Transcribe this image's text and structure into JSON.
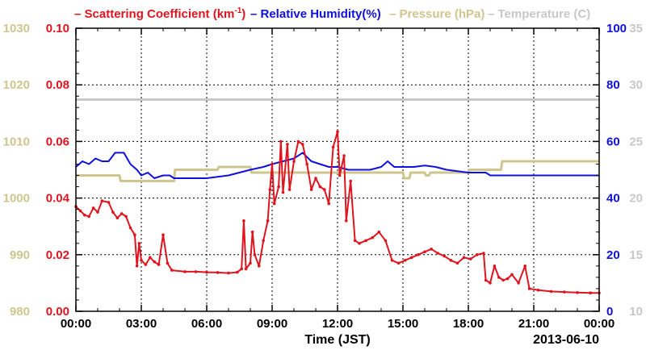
{
  "colors": {
    "scattering": "#e0141e",
    "humidity": "#1010dd",
    "pressure": "#cfc58e",
    "temperature": "#c8c8c8",
    "axis": "#000000",
    "grid": "#000000"
  },
  "legend": {
    "scattering_prefix": "Scattering Coefficient (km",
    "scattering_sup": "-1",
    "scattering_suffix": ")",
    "humidity": "Relative Humidity(%)",
    "pressure": "Pressure (hPa)",
    "temperature": "Temperature (C)",
    "dash": "–"
  },
  "chart_data": {
    "type": "line",
    "xlabel": "Time (JST)",
    "date_label": "2013-06-10",
    "x_ticks": [
      "00:00",
      "03:00",
      "06:00",
      "09:00",
      "12:00",
      "15:00",
      "18:00",
      "21:00",
      "00:00"
    ],
    "xlim": [
      0,
      24
    ],
    "axes": {
      "scattering": {
        "ylim": [
          0,
          0.1
        ],
        "ticks": [
          "0.00",
          "0.02",
          "0.04",
          "0.06",
          "0.08",
          "0.10"
        ]
      },
      "pressure": {
        "ylim": [
          980,
          1030
        ],
        "ticks": [
          "980",
          "990",
          "1000",
          "1010",
          "1020",
          "1030"
        ]
      },
      "humidity": {
        "ylim": [
          0,
          100
        ],
        "ticks": [
          "0",
          "20",
          "40",
          "60",
          "80",
          "100"
        ]
      },
      "temperature": {
        "ylim": [
          10,
          35
        ],
        "ticks": [
          "10",
          "15",
          "20",
          "25",
          "30",
          "35"
        ]
      }
    },
    "grid": true,
    "series": [
      {
        "name": "Scattering Coefficient (km-1)",
        "axis": "scattering",
        "markers": true,
        "points": [
          [
            0.0,
            0.037
          ],
          [
            0.2,
            0.0355
          ],
          [
            0.4,
            0.034
          ],
          [
            0.6,
            0.0335
          ],
          [
            0.8,
            0.0365
          ],
          [
            1.0,
            0.035
          ],
          [
            1.2,
            0.039
          ],
          [
            1.5,
            0.0385
          ],
          [
            1.7,
            0.035
          ],
          [
            1.9,
            0.033
          ],
          [
            2.1,
            0.0345
          ],
          [
            2.3,
            0.0335
          ],
          [
            2.5,
            0.0295
          ],
          [
            2.7,
            0.027
          ],
          [
            2.8,
            0.016
          ],
          [
            2.9,
            0.024
          ],
          [
            3.0,
            0.018
          ],
          [
            3.2,
            0.0165
          ],
          [
            3.4,
            0.019
          ],
          [
            3.6,
            0.0175
          ],
          [
            3.8,
            0.0165
          ],
          [
            4.0,
            0.027
          ],
          [
            4.2,
            0.017
          ],
          [
            4.4,
            0.0145
          ],
          [
            5.0,
            0.014
          ],
          [
            5.5,
            0.014
          ],
          [
            6.0,
            0.0138
          ],
          [
            6.5,
            0.0137
          ],
          [
            7.0,
            0.0135
          ],
          [
            7.4,
            0.0138
          ],
          [
            7.6,
            0.015
          ],
          [
            7.7,
            0.032
          ],
          [
            7.8,
            0.015
          ],
          [
            8.0,
            0.017
          ],
          [
            8.1,
            0.028
          ],
          [
            8.2,
            0.02
          ],
          [
            8.4,
            0.016
          ],
          [
            8.6,
            0.025
          ],
          [
            8.8,
            0.032
          ],
          [
            8.9,
            0.043
          ],
          [
            9.0,
            0.052
          ],
          [
            9.1,
            0.038
          ],
          [
            9.3,
            0.044
          ],
          [
            9.4,
            0.06
          ],
          [
            9.5,
            0.042
          ],
          [
            9.7,
            0.059
          ],
          [
            9.8,
            0.043
          ],
          [
            10.0,
            0.053
          ],
          [
            10.2,
            0.06
          ],
          [
            10.4,
            0.059
          ],
          [
            10.6,
            0.052
          ],
          [
            10.8,
            0.043
          ],
          [
            11.0,
            0.047
          ],
          [
            11.2,
            0.044
          ],
          [
            11.4,
            0.043
          ],
          [
            11.6,
            0.038
          ],
          [
            11.8,
            0.058
          ],
          [
            12.0,
            0.0635
          ],
          [
            12.1,
            0.048
          ],
          [
            12.3,
            0.055
          ],
          [
            12.4,
            0.032
          ],
          [
            12.6,
            0.046
          ],
          [
            12.8,
            0.025
          ],
          [
            13.0,
            0.024
          ],
          [
            13.3,
            0.025
          ],
          [
            13.6,
            0.026
          ],
          [
            13.9,
            0.028
          ],
          [
            14.2,
            0.025
          ],
          [
            14.5,
            0.018
          ],
          [
            14.8,
            0.017
          ],
          [
            15.1,
            0.018
          ],
          [
            15.4,
            0.019
          ],
          [
            15.7,
            0.02
          ],
          [
            16.0,
            0.021
          ],
          [
            16.3,
            0.022
          ],
          [
            16.6,
            0.0205
          ],
          [
            16.9,
            0.0195
          ],
          [
            17.2,
            0.018
          ],
          [
            17.5,
            0.017
          ],
          [
            17.8,
            0.019
          ],
          [
            18.1,
            0.0185
          ],
          [
            18.4,
            0.02
          ],
          [
            18.7,
            0.0205
          ],
          [
            18.8,
            0.011
          ],
          [
            19.0,
            0.01
          ],
          [
            19.2,
            0.016
          ],
          [
            19.4,
            0.012
          ],
          [
            19.6,
            0.011
          ],
          [
            19.8,
            0.0115
          ],
          [
            20.0,
            0.013
          ],
          [
            20.3,
            0.01
          ],
          [
            20.6,
            0.016
          ],
          [
            20.8,
            0.008
          ],
          [
            21.2,
            0.0075
          ],
          [
            21.8,
            0.007
          ],
          [
            22.4,
            0.0068
          ],
          [
            23.0,
            0.0066
          ],
          [
            23.6,
            0.0065
          ],
          [
            24.0,
            0.0065
          ]
        ]
      },
      {
        "name": "Relative Humidity(%)",
        "axis": "humidity",
        "markers": false,
        "points": [
          [
            0.0,
            51
          ],
          [
            0.3,
            53
          ],
          [
            0.6,
            52
          ],
          [
            0.9,
            54
          ],
          [
            1.2,
            53
          ],
          [
            1.5,
            53
          ],
          [
            1.8,
            56
          ],
          [
            2.2,
            56
          ],
          [
            2.5,
            52
          ],
          [
            2.8,
            50
          ],
          [
            3.0,
            48
          ],
          [
            3.3,
            49
          ],
          [
            3.6,
            47
          ],
          [
            4.0,
            48
          ],
          [
            4.3,
            48
          ],
          [
            4.5,
            47
          ],
          [
            5.0,
            47
          ],
          [
            6.0,
            47
          ],
          [
            7.0,
            48
          ],
          [
            8.0,
            50
          ],
          [
            8.6,
            51
          ],
          [
            9.0,
            52
          ],
          [
            9.5,
            53
          ],
          [
            10.0,
            54
          ],
          [
            10.4,
            56
          ],
          [
            10.8,
            53
          ],
          [
            11.2,
            52
          ],
          [
            11.6,
            51
          ],
          [
            12.0,
            51
          ],
          [
            12.5,
            50
          ],
          [
            13.0,
            50
          ],
          [
            13.5,
            50
          ],
          [
            14.0,
            51
          ],
          [
            14.3,
            53
          ],
          [
            14.6,
            51
          ],
          [
            15.0,
            51
          ],
          [
            15.5,
            51
          ],
          [
            16.0,
            51.5
          ],
          [
            16.5,
            51
          ],
          [
            17.0,
            50
          ],
          [
            18.0,
            49
          ],
          [
            18.8,
            49
          ],
          [
            19.0,
            48
          ],
          [
            19.5,
            48
          ],
          [
            20.0,
            48
          ],
          [
            21.0,
            48
          ],
          [
            22.0,
            48
          ],
          [
            23.0,
            48
          ],
          [
            24.0,
            48
          ]
        ]
      },
      {
        "name": "Pressure (hPa)",
        "axis": "pressure",
        "markers": false,
        "points": [
          [
            0.0,
            1004
          ],
          [
            2.0,
            1004
          ],
          [
            2.05,
            1003
          ],
          [
            4.5,
            1003
          ],
          [
            4.55,
            1005
          ],
          [
            6.5,
            1005
          ],
          [
            6.55,
            1005.5
          ],
          [
            8.0,
            1005.5
          ],
          [
            8.05,
            1004.5
          ],
          [
            15.0,
            1004.5
          ],
          [
            15.05,
            1003.5
          ],
          [
            15.3,
            1003.5
          ],
          [
            15.35,
            1004.5
          ],
          [
            16.0,
            1004.5
          ],
          [
            16.05,
            1004
          ],
          [
            16.2,
            1004
          ],
          [
            16.25,
            1004.5
          ],
          [
            18.0,
            1004.5
          ],
          [
            18.05,
            1005
          ],
          [
            19.5,
            1005
          ],
          [
            19.55,
            1006.5
          ],
          [
            24.0,
            1006.5
          ]
        ]
      },
      {
        "name": "Temperature (C)",
        "axis": "temperature",
        "markers": false,
        "points": [
          [
            0.0,
            28.7
          ],
          [
            24.0,
            28.7
          ]
        ]
      }
    ]
  }
}
